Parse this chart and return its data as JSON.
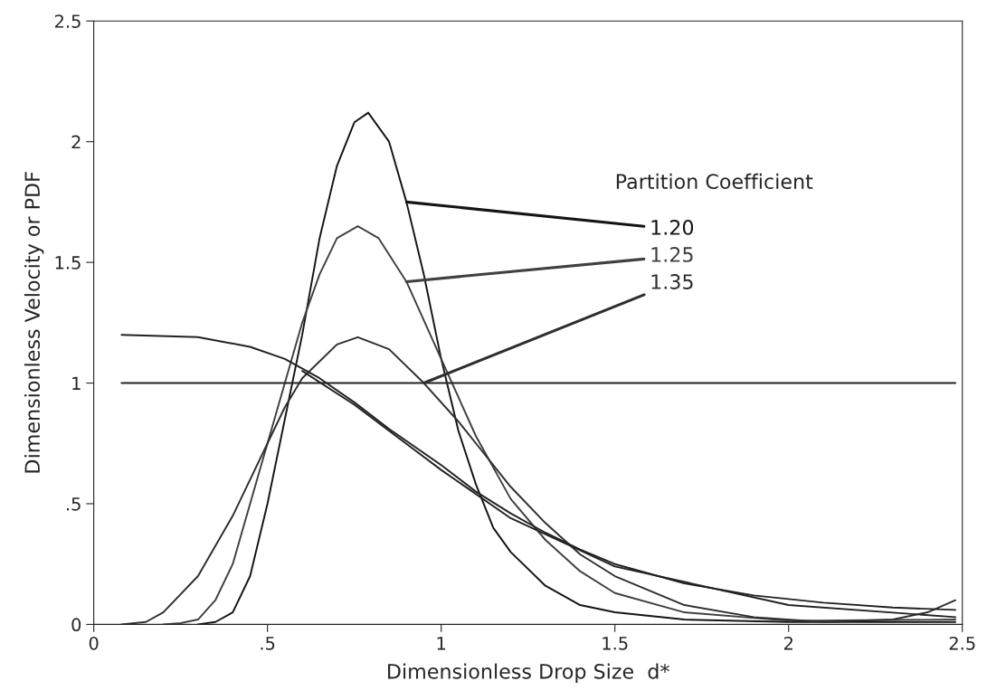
{
  "chart_data": {
    "type": "line",
    "xlabel": "Dimensionless Drop Size  d*",
    "ylabel": "Dimensionless Velocity or PDF",
    "legend_title": "Partition Coefficient",
    "xlim": [
      0,
      2.5
    ],
    "ylim": [
      0,
      2.5
    ],
    "xticks": [
      0,
      {
        "value": 0.5,
        "label": ".5"
      },
      1,
      1.5,
      2,
      2.5
    ],
    "yticks": [
      0,
      {
        "value": 0.5,
        "label": ".5"
      },
      1,
      1.5,
      2,
      2.5
    ],
    "grid": false,
    "series": [
      {
        "name": "1.20",
        "color": "#141414",
        "x": [
          0.3,
          0.35,
          0.4,
          0.45,
          0.5,
          0.55,
          0.6,
          0.65,
          0.7,
          0.75,
          0.79,
          0.85,
          0.9,
          0.95,
          1.0,
          1.05,
          1.1,
          1.15,
          1.2,
          1.3,
          1.4,
          1.5,
          1.7,
          2.0,
          2.48
        ],
        "values": [
          0,
          0.01,
          0.05,
          0.2,
          0.5,
          0.85,
          1.2,
          1.6,
          1.9,
          2.08,
          2.12,
          2.0,
          1.75,
          1.45,
          1.1,
          0.8,
          0.58,
          0.4,
          0.3,
          0.16,
          0.08,
          0.05,
          0.02,
          0.01,
          0.01
        ]
      },
      {
        "name": "1.25",
        "color": "#404040",
        "x": [
          0.2,
          0.25,
          0.3,
          0.35,
          0.4,
          0.45,
          0.5,
          0.55,
          0.6,
          0.65,
          0.7,
          0.76,
          0.82,
          0.9,
          1.0,
          1.1,
          1.2,
          1.3,
          1.4,
          1.5,
          1.7,
          2.0,
          2.48
        ],
        "values": [
          0,
          0.005,
          0.02,
          0.1,
          0.25,
          0.5,
          0.75,
          1.0,
          1.25,
          1.45,
          1.6,
          1.65,
          1.6,
          1.42,
          1.1,
          0.78,
          0.52,
          0.35,
          0.22,
          0.13,
          0.05,
          0.015,
          0.02
        ]
      },
      {
        "name": "1.35",
        "color": "#2e2e2e",
        "x": [
          0.08,
          0.15,
          0.2,
          0.3,
          0.4,
          0.5,
          0.55,
          0.6,
          0.7,
          0.76,
          0.85,
          0.95,
          1.05,
          1.1,
          1.2,
          1.3,
          1.4,
          1.5,
          1.7,
          1.9,
          2.1,
          2.3,
          2.4,
          2.48
        ],
        "values": [
          0,
          0.01,
          0.05,
          0.2,
          0.45,
          0.75,
          0.9,
          1.02,
          1.16,
          1.19,
          1.14,
          1.0,
          0.84,
          0.75,
          0.57,
          0.42,
          0.29,
          0.2,
          0.08,
          0.03,
          0.01,
          0.02,
          0.05,
          0.1
        ]
      },
      {
        "color": "#222222",
        "x": [
          0.08,
          0.3,
          0.45,
          0.55,
          0.65,
          0.75,
          0.85,
          1.0,
          1.1,
          1.2,
          1.3,
          1.4,
          1.5,
          1.7,
          1.9,
          2.1,
          2.3,
          2.48
        ],
        "values": [
          1.2,
          1.19,
          1.15,
          1.1,
          1.02,
          0.92,
          0.81,
          0.66,
          0.55,
          0.46,
          0.38,
          0.31,
          0.25,
          0.17,
          0.12,
          0.09,
          0.07,
          0.06
        ]
      },
      {
        "color": "#222222",
        "x": [
          0.6,
          0.75,
          1.0,
          1.2,
          1.5,
          2.0,
          2.48
        ],
        "values": [
          1.05,
          0.91,
          0.64,
          0.44,
          0.24,
          0.08,
          0.03
        ]
      },
      {
        "color": "#222222",
        "x": [
          0.08,
          2.48
        ],
        "values": [
          1,
          1
        ]
      }
    ]
  }
}
